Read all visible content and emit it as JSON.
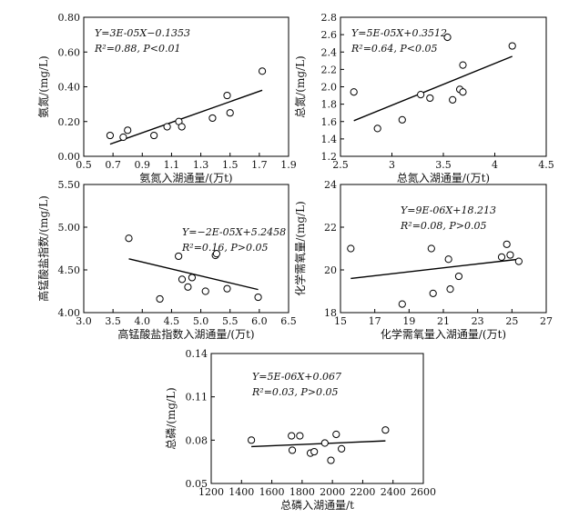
{
  "chart_data": [
    {
      "type": "scatter",
      "id": "ammonia",
      "xlabel": "氨氮入湖通量/(万t)",
      "ylabel": "氨氮/(mg/L)",
      "xlim": [
        0.5,
        1.9
      ],
      "ylim": [
        0.0,
        0.8
      ],
      "xticks": [
        "0.5",
        "0.7",
        "0.9",
        "1.1",
        "1.3",
        "1.5",
        "1.7",
        "1.9"
      ],
      "yticks": [
        "0.00",
        "0.20",
        "0.40",
        "0.60",
        "0.80"
      ],
      "points": [
        {
          "x": 0.68,
          "y": 0.12
        },
        {
          "x": 0.77,
          "y": 0.11
        },
        {
          "x": 0.8,
          "y": 0.15
        },
        {
          "x": 0.98,
          "y": 0.12
        },
        {
          "x": 1.07,
          "y": 0.17
        },
        {
          "x": 1.15,
          "y": 0.2
        },
        {
          "x": 1.17,
          "y": 0.17
        },
        {
          "x": 1.38,
          "y": 0.22
        },
        {
          "x": 1.48,
          "y": 0.35
        },
        {
          "x": 1.5,
          "y": 0.25
        },
        {
          "x": 1.72,
          "y": 0.49
        }
      ],
      "fit": {
        "x": [
          0.68,
          1.72
        ],
        "y": [
          0.07,
          0.38
        ]
      },
      "equation": "Y=3E-05X−0.1353",
      "r2_stat": "R²=0.88, P<0.01",
      "grid": false
    },
    {
      "type": "scatter",
      "id": "total-nitrogen",
      "xlabel": "总氮入湖通量/(万t)",
      "ylabel": "总氮/(mg/L)",
      "xlim": [
        2.5,
        4.5
      ],
      "ylim": [
        1.2,
        2.8
      ],
      "xticks": [
        "2.5",
        "3",
        "3.5",
        "4",
        "4.5"
      ],
      "yticks": [
        "1.2",
        "1.4",
        "1.6",
        "1.8",
        "2.0",
        "2.2",
        "2.4",
        "2.6",
        "2.8"
      ],
      "points": [
        {
          "x": 2.63,
          "y": 1.94
        },
        {
          "x": 2.86,
          "y": 1.52
        },
        {
          "x": 3.1,
          "y": 1.62
        },
        {
          "x": 3.28,
          "y": 1.91
        },
        {
          "x": 3.37,
          "y": 1.87
        },
        {
          "x": 3.54,
          "y": 2.57
        },
        {
          "x": 3.59,
          "y": 1.85
        },
        {
          "x": 3.66,
          "y": 1.97
        },
        {
          "x": 3.69,
          "y": 1.94
        },
        {
          "x": 3.69,
          "y": 2.25
        },
        {
          "x": 4.17,
          "y": 2.47
        }
      ],
      "fit": {
        "x": [
          2.63,
          4.17
        ],
        "y": [
          1.61,
          2.35
        ]
      },
      "equation": "Y=5E-05X+0.3512",
      "r2_stat": "R²=0.64, P<0.05",
      "grid": false
    },
    {
      "type": "scatter",
      "id": "permanganate-index",
      "xlabel": "高锰酸盐指数入湖通量/(万t)",
      "ylabel": "高锰酸盐指数/(mg/L)",
      "xlim": [
        3.0,
        6.5
      ],
      "ylim": [
        4.0,
        5.5
      ],
      "xticks": [
        "3.0",
        "3.5",
        "4.0",
        "4.5",
        "5.0",
        "5.5",
        "6.0",
        "6.5"
      ],
      "yticks": [
        "4.00",
        "4.50",
        "5.00",
        "5.50"
      ],
      "points": [
        {
          "x": 3.77,
          "y": 4.87
        },
        {
          "x": 4.3,
          "y": 4.16
        },
        {
          "x": 4.62,
          "y": 4.66
        },
        {
          "x": 4.68,
          "y": 4.39
        },
        {
          "x": 4.78,
          "y": 4.3
        },
        {
          "x": 4.85,
          "y": 4.41
        },
        {
          "x": 5.08,
          "y": 4.25
        },
        {
          "x": 5.25,
          "y": 4.67
        },
        {
          "x": 5.27,
          "y": 4.69
        },
        {
          "x": 5.45,
          "y": 4.28
        },
        {
          "x": 5.98,
          "y": 4.18
        }
      ],
      "fit": {
        "x": [
          3.77,
          5.98
        ],
        "y": [
          4.63,
          4.27
        ]
      },
      "equation": "Y=−2E-05X+5.2458",
      "r2_stat": "R²=0.16, P>0.05",
      "grid": false
    },
    {
      "type": "scatter",
      "id": "cod",
      "xlabel": "化学需氧量入湖通量/(万t)",
      "ylabel": "化学需氧量/(mg/L)",
      "xlim": [
        15,
        27
      ],
      "ylim": [
        18,
        24
      ],
      "xticks": [
        "15",
        "17",
        "19",
        "21",
        "23",
        "25",
        "27"
      ],
      "yticks": [
        "18",
        "20",
        "22",
        "24"
      ],
      "points": [
        {
          "x": 15.6,
          "y": 21.0
        },
        {
          "x": 18.6,
          "y": 18.4
        },
        {
          "x": 20.3,
          "y": 21.0
        },
        {
          "x": 20.4,
          "y": 18.9
        },
        {
          "x": 21.3,
          "y": 20.5
        },
        {
          "x": 21.4,
          "y": 19.1
        },
        {
          "x": 21.9,
          "y": 19.7
        },
        {
          "x": 24.4,
          "y": 20.6
        },
        {
          "x": 24.7,
          "y": 21.2
        },
        {
          "x": 24.9,
          "y": 20.7
        },
        {
          "x": 25.4,
          "y": 20.4
        }
      ],
      "fit": {
        "x": [
          15.6,
          25.4
        ],
        "y": [
          19.6,
          20.5
        ]
      },
      "equation": "Y=9E-06X+18.213",
      "r2_stat": "R²=0.08, P>0.05",
      "grid": false
    },
    {
      "type": "scatter",
      "id": "total-phosphorus",
      "xlabel": "总磷入湖通量/t",
      "ylabel": "总磷/(mg/L)",
      "xlim": [
        1200,
        2600
      ],
      "ylim": [
        0.05,
        0.14
      ],
      "xticks": [
        "1200",
        "1400",
        "1600",
        "1800",
        "2000",
        "2200",
        "2400",
        "2600"
      ],
      "yticks": [
        "0.05",
        "0.08",
        "0.11",
        "0.14"
      ],
      "points": [
        {
          "x": 1465,
          "y": 0.08
        },
        {
          "x": 1730,
          "y": 0.083
        },
        {
          "x": 1735,
          "y": 0.073
        },
        {
          "x": 1785,
          "y": 0.083
        },
        {
          "x": 1855,
          "y": 0.071
        },
        {
          "x": 1880,
          "y": 0.072
        },
        {
          "x": 1950,
          "y": 0.078
        },
        {
          "x": 1990,
          "y": 0.066
        },
        {
          "x": 2025,
          "y": 0.084
        },
        {
          "x": 2060,
          "y": 0.074
        },
        {
          "x": 2350,
          "y": 0.087
        }
      ],
      "fit": {
        "x": [
          1465,
          2350
        ],
        "y": [
          0.0755,
          0.0795
        ]
      },
      "equation": "Y=5E-06X+0.067",
      "r2_stat": "R²=0.03, P>0.05",
      "grid": false
    }
  ]
}
